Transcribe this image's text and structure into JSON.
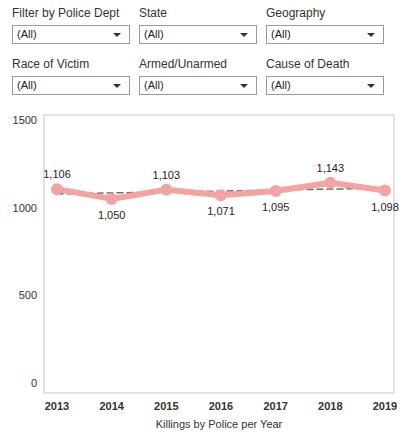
{
  "filters": [
    {
      "label": "Filter by Police Dept",
      "value": "(All)"
    },
    {
      "label": "State",
      "value": "(All)"
    },
    {
      "label": "Geography",
      "value": "(All)"
    },
    {
      "label": "Race of Victim",
      "value": "(All)"
    },
    {
      "label": "Armed/Unarmed",
      "value": "(All)"
    },
    {
      "label": "Cause of Death",
      "value": "(All)"
    }
  ],
  "chart_data": {
    "type": "line",
    "x_label": "Killings by Police per Year",
    "categories": [
      "2013",
      "2014",
      "2015",
      "2016",
      "2017",
      "2018",
      "2019"
    ],
    "series": [
      {
        "color": "#f4a3a3",
        "marker": "circle",
        "data_labels": true,
        "values": [
          1106,
          1050,
          1103,
          1071,
          1095,
          1143,
          1098
        ],
        "value_labels": [
          "1,106",
          "1,050",
          "1,103",
          "1,071",
          "1,095",
          "1,143",
          "1,098"
        ]
      },
      {
        "color": "#6f6f6f",
        "line_style": "dashed",
        "values": [
          1078.6,
          1084.1,
          1089.6,
          1095.1,
          1100.6,
          1106.1,
          1111.6
        ]
      }
    ],
    "ylim": [
      -60,
      1530
    ],
    "yticks": [
      0,
      500,
      1000,
      1500
    ],
    "grid": false
  }
}
